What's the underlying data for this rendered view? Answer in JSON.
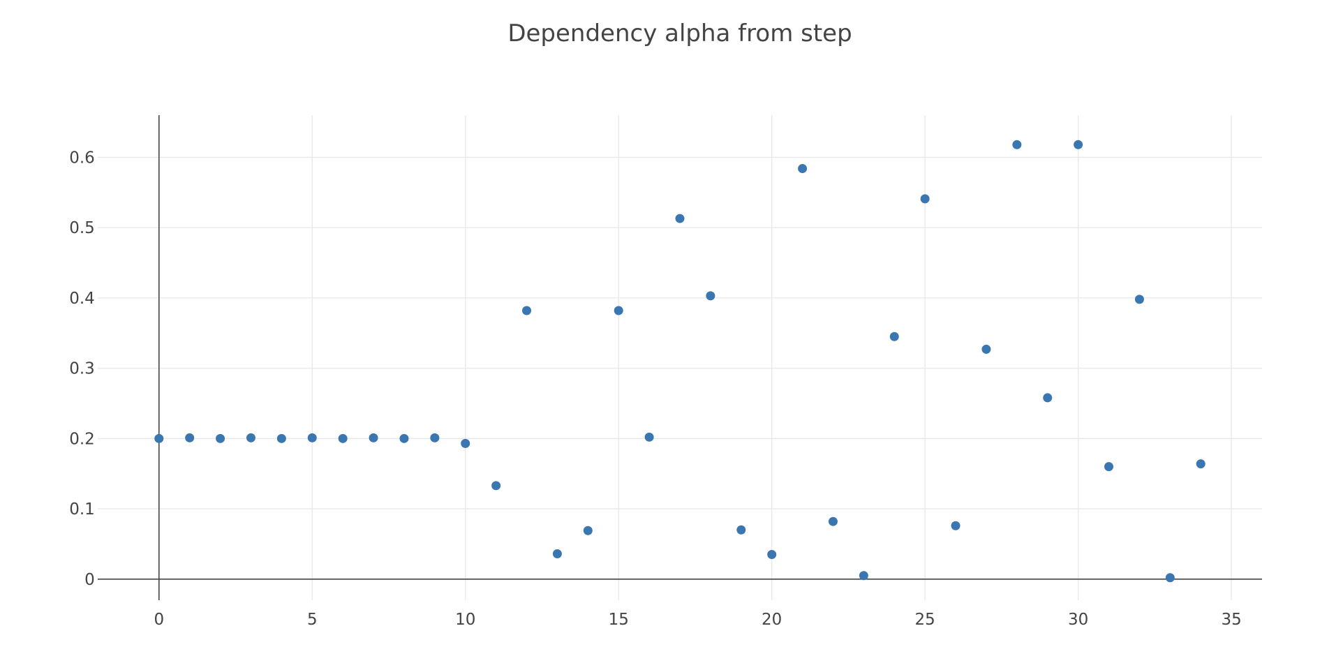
{
  "chart_data": {
    "type": "scatter",
    "title": "Dependency alpha from step",
    "xlabel": "",
    "ylabel": "",
    "xlim": [
      -2,
      36
    ],
    "ylim": [
      -0.03,
      0.66
    ],
    "x_ticks": [
      0,
      5,
      10,
      15,
      20,
      25,
      30,
      35
    ],
    "y_ticks": [
      0,
      0.1,
      0.2,
      0.3,
      0.4,
      0.5,
      0.6
    ],
    "x_tick_labels": [
      "0",
      "5",
      "10",
      "15",
      "20",
      "25",
      "30",
      "35"
    ],
    "y_tick_labels": [
      "0",
      "0.1",
      "0.2",
      "0.3",
      "0.4",
      "0.5",
      "0.6"
    ],
    "grid": true,
    "marker_color": "#3a76af",
    "series": [
      {
        "x": [
          0,
          1,
          2,
          3,
          4,
          5,
          6,
          7,
          8,
          9,
          10,
          11,
          12,
          13,
          14,
          15,
          16,
          17,
          18,
          19,
          20,
          21,
          22,
          23,
          24,
          25,
          26,
          27,
          28,
          29,
          30,
          31,
          32,
          33,
          34
        ],
        "y": [
          0.2,
          0.201,
          0.2,
          0.201,
          0.2,
          0.201,
          0.2,
          0.201,
          0.2,
          0.201,
          0.193,
          0.133,
          0.382,
          0.036,
          0.069,
          0.382,
          0.202,
          0.513,
          0.403,
          0.07,
          0.035,
          0.584,
          0.082,
          0.005,
          0.345,
          0.541,
          0.076,
          0.327,
          0.618,
          0.258,
          0.618,
          0.16,
          0.398,
          0.002,
          0.164
        ]
      }
    ]
  }
}
